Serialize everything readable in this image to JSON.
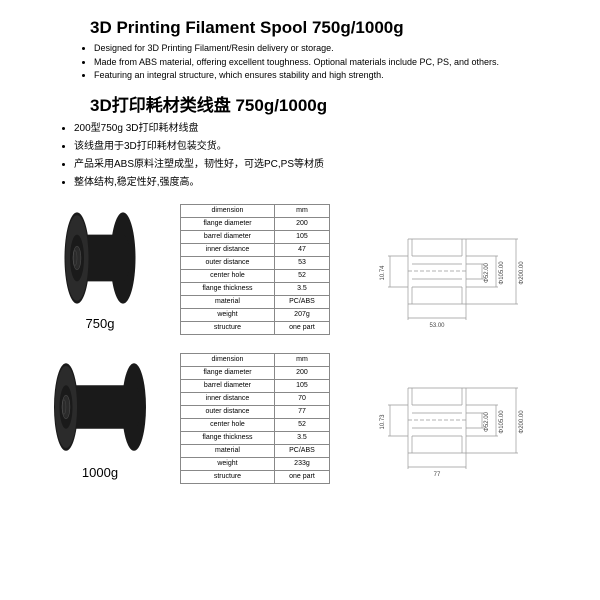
{
  "title_en": "3D Printing Filament Spool  750g/1000g",
  "bullets_en": [
    "Designed for 3D Printing Filament/Resin delivery or storage.",
    "Made from ABS material, offering excellent toughness. Optional materials include PC, PS, and others.",
    "Featuring an integral structure, which ensures stability and high strength."
  ],
  "title_cn": "3D打印耗材类线盘 750g/1000g",
  "bullets_cn": [
    "200型750g 3D打印耗材线盘",
    "该线盘用于3D打印耗材包装交货。",
    "产品采用ABS原料注塑成型，韧性好，可选PC,PS等材质",
    "整体结构,稳定性好,强度高。"
  ],
  "spec_headers": [
    "dimension",
    "mm"
  ],
  "spec_rows_labels": [
    "flange diameter",
    "barrel diameter",
    "inner distance",
    "outer distance",
    "center hole",
    "flange thickness",
    "material",
    "weight",
    "structure"
  ],
  "products": [
    {
      "label": "750g",
      "spool": {
        "flange_r": 50,
        "barrel_r": 28,
        "hole_r": 13,
        "width": 46
      },
      "values": [
        "200",
        "105",
        "47",
        "53",
        "52",
        "3.5",
        "PC/ABS",
        "207g",
        "one part"
      ],
      "diagram": {
        "flange": "Φ200.00",
        "barrel": "Φ105.00",
        "hole": "Φ52.00",
        "outer": "53.00",
        "side": "10.74"
      }
    },
    {
      "label": "1000g",
      "spool": {
        "flange_r": 48,
        "barrel_r": 26,
        "hole_r": 13,
        "width": 68
      },
      "values": [
        "200",
        "105",
        "70",
        "77",
        "52",
        "3.5",
        "PC/ABS",
        "233g",
        "one part"
      ],
      "diagram": {
        "flange": "Φ200.00",
        "barrel": "Φ105.00",
        "hole": "Φ52.00",
        "outer": "77",
        "side": "10.73"
      }
    }
  ],
  "colors": {
    "spool": "#1a1a1a",
    "spool_hl": "#555555",
    "line": "#999999",
    "text": "#000000"
  }
}
